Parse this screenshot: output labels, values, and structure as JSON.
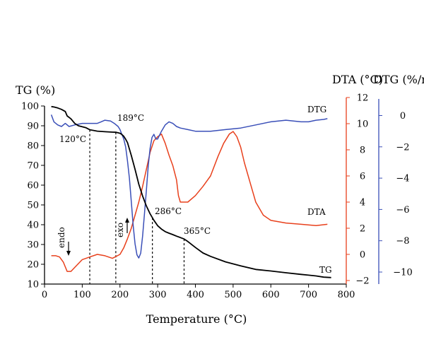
{
  "chart_data": {
    "type": "line",
    "xlabel": "Temperature (°C)",
    "xlim": [
      0,
      800
    ],
    "x_ticks": [
      "0",
      "100",
      "200",
      "300",
      "400",
      "500",
      "600",
      "700",
      "800"
    ],
    "axes": {
      "tg": {
        "label": "TG (%)",
        "lim": [
          10,
          100
        ],
        "ticks": [
          "10",
          "20",
          "30",
          "40",
          "50",
          "60",
          "70",
          "80",
          "90",
          "100"
        ],
        "color": "#000000"
      },
      "dta": {
        "label": "DTA (°C)",
        "lim": [
          -3,
          12
        ],
        "ticks": [
          "−2",
          "0",
          "2",
          "4",
          "6",
          "8",
          "10",
          "12"
        ],
        "color": "#e8401c"
      },
      "dtg": {
        "label": "DTG (%/min)",
        "lim": [
          -11.2,
          1.15
        ],
        "ticks": [
          "0",
          "−2",
          "−4",
          "−6",
          "−8",
          "−10"
        ],
        "color": "#3a4fb8"
      }
    },
    "series": [
      {
        "name": "TG",
        "axis": "tg",
        "color": "#000000",
        "x": [
          18,
          25,
          35,
          45,
          55,
          60,
          70,
          80,
          90,
          100,
          110,
          120,
          140,
          160,
          180,
          190,
          200,
          205,
          210,
          215,
          220,
          230,
          240,
          250,
          260,
          270,
          280,
          290,
          300,
          310,
          320,
          330,
          340,
          350,
          360,
          370,
          380,
          400,
          420,
          440,
          480,
          520,
          560,
          600,
          640,
          680,
          700,
          720,
          740,
          760
        ],
        "y": [
          99.7,
          99.5,
          99.0,
          98.3,
          97.2,
          95.0,
          93.5,
          91.2,
          90.0,
          89.5,
          89.0,
          88.0,
          87.3,
          87.0,
          86.8,
          86.7,
          86.2,
          85.6,
          84.7,
          83.2,
          81.5,
          75.0,
          68.0,
          60.5,
          54.5,
          49.5,
          45.5,
          42.2,
          39.5,
          37.8,
          36.5,
          35.7,
          35.0,
          34.2,
          33.5,
          32.8,
          31.5,
          28.5,
          25.7,
          24.0,
          21.2,
          19.2,
          17.4,
          16.6,
          15.7,
          14.9,
          14.5,
          14.1,
          13.5,
          13.3
        ]
      },
      {
        "name": "DTA",
        "axis": "dta",
        "color": "#e8401c",
        "x": [
          18,
          30,
          40,
          50,
          60,
          70,
          80,
          100,
          120,
          140,
          160,
          180,
          200,
          210,
          220,
          230,
          240,
          250,
          260,
          270,
          280,
          290,
          300,
          310,
          320,
          330,
          340,
          350,
          355,
          360,
          370,
          380,
          400,
          420,
          440,
          460,
          475,
          490,
          500,
          510,
          520,
          530,
          545,
          560,
          580,
          600,
          640,
          680,
          720,
          750
        ],
        "y": [
          -0.1,
          -0.1,
          -0.2,
          -0.6,
          -1.3,
          -1.3,
          -1.0,
          -0.4,
          -0.2,
          0.0,
          -0.1,
          -0.3,
          0.0,
          0.5,
          1.2,
          2.0,
          3.0,
          4.0,
          5.2,
          6.5,
          7.8,
          8.7,
          9.0,
          9.2,
          8.5,
          7.6,
          6.8,
          5.7,
          4.5,
          4.0,
          4.0,
          4.0,
          4.5,
          5.2,
          6.0,
          7.5,
          8.5,
          9.2,
          9.4,
          9.0,
          8.2,
          7.0,
          5.5,
          4.0,
          3.0,
          2.6,
          2.4,
          2.3,
          2.2,
          2.3
        ]
      },
      {
        "name": "DTG",
        "axis": "dtg",
        "color": "#3a4fb8",
        "x": [
          18,
          25,
          35,
          45,
          55,
          65,
          80,
          100,
          120,
          140,
          150,
          160,
          175,
          185,
          195,
          200,
          205,
          210,
          215,
          220,
          225,
          230,
          235,
          240,
          245,
          250,
          255,
          260,
          265,
          270,
          275,
          280,
          285,
          290,
          295,
          300,
          310,
          320,
          330,
          340,
          350,
          360,
          380,
          400,
          420,
          440,
          480,
          520,
          560,
          600,
          640,
          680,
          700,
          720,
          740,
          750
        ],
        "y": [
          0.05,
          -0.4,
          -0.6,
          -0.7,
          -0.5,
          -0.7,
          -0.6,
          -0.5,
          -0.5,
          -0.5,
          -0.4,
          -0.3,
          -0.35,
          -0.5,
          -0.7,
          -0.9,
          -1.2,
          -1.5,
          -2.0,
          -2.9,
          -4.0,
          -5.5,
          -7.0,
          -8.2,
          -8.9,
          -9.1,
          -8.8,
          -7.7,
          -6.3,
          -4.8,
          -3.2,
          -2.1,
          -1.4,
          -1.2,
          -1.5,
          -1.5,
          -1.0,
          -0.6,
          -0.4,
          -0.5,
          -0.7,
          -0.8,
          -0.9,
          -1.0,
          -1.0,
          -1.0,
          -0.9,
          -0.8,
          -0.6,
          -0.4,
          -0.3,
          -0.4,
          -0.4,
          -0.3,
          -0.25,
          -0.2
        ]
      }
    ],
    "annotations": [
      {
        "text": "120°C",
        "x": 120
      },
      {
        "text": "189°C",
        "x": 189
      },
      {
        "text": "286°C",
        "x": 286
      },
      {
        "text": "365°C",
        "x": 370
      }
    ],
    "markers": {
      "endo": "endo",
      "exo": "exo"
    },
    "grid": false,
    "legend": "inline labels at curve ends"
  }
}
